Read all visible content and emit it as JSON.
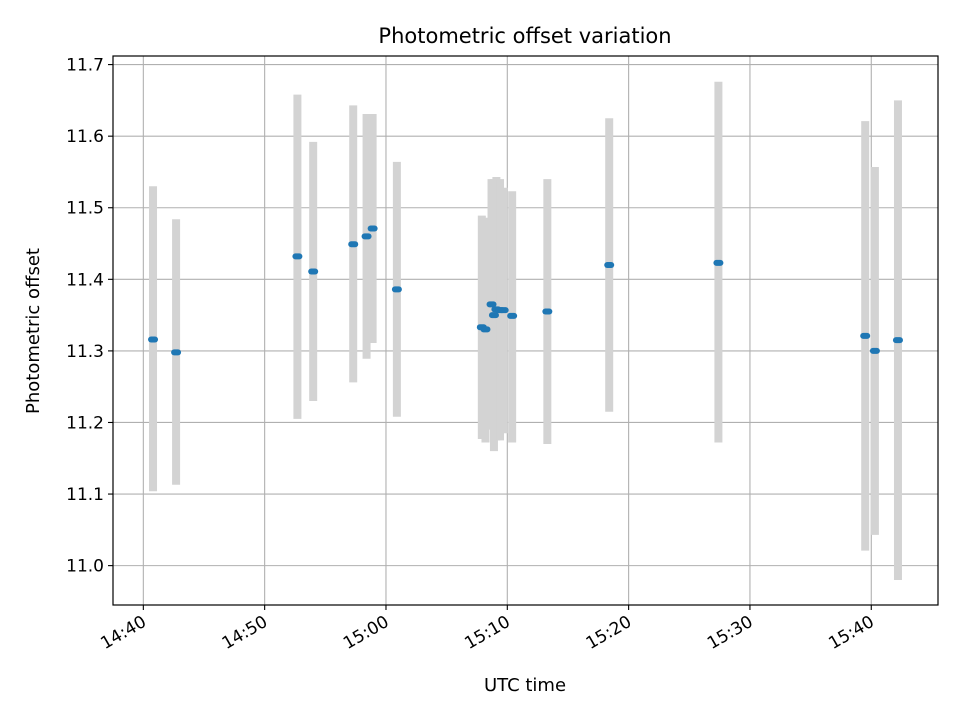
{
  "chart_data": {
    "type": "scatter",
    "title": "Photometric offset variation",
    "xlabel": "UTC time",
    "ylabel": "Photometric offset",
    "x_ticks": [
      "14:40",
      "14:50",
      "15:00",
      "15:10",
      "15:20",
      "15:30",
      "15:40"
    ],
    "y_ticks": [
      "11.0",
      "11.1",
      "11.2",
      "11.3",
      "11.4",
      "11.5",
      "11.6",
      "11.7"
    ],
    "xlim": [
      "14:37.5",
      "15:45.5"
    ],
    "ylim": [
      10.945,
      11.712
    ],
    "grid": true,
    "marker_color": "#1f77b4",
    "errorbar_color": "#d3d3d3",
    "points": [
      {
        "x": "14:40.8",
        "y": 11.316,
        "y_low": 11.104,
        "y_high": 11.53
      },
      {
        "x": "14:42.7",
        "y": 11.298,
        "y_low": 11.113,
        "y_high": 11.484
      },
      {
        "x": "14:52.7",
        "y": 11.432,
        "y_low": 11.205,
        "y_high": 11.658
      },
      {
        "x": "14:54.0",
        "y": 11.411,
        "y_low": 11.23,
        "y_high": 11.592
      },
      {
        "x": "14:57.3",
        "y": 11.449,
        "y_low": 11.256,
        "y_high": 11.643
      },
      {
        "x": "14:58.4",
        "y": 11.46,
        "y_low": 11.289,
        "y_high": 11.631
      },
      {
        "x": "14:58.9",
        "y": 11.471,
        "y_low": 11.311,
        "y_high": 11.631
      },
      {
        "x": "15:00.9",
        "y": 11.386,
        "y_low": 11.208,
        "y_high": 11.564
      },
      {
        "x": "15:07.9",
        "y": 11.333,
        "y_low": 11.177,
        "y_high": 11.489
      },
      {
        "x": "15:08.2",
        "y": 11.33,
        "y_low": 11.172,
        "y_high": 11.486
      },
      {
        "x": "15:08.7",
        "y": 11.365,
        "y_low": 11.19,
        "y_high": 11.54
      },
      {
        "x": "15:08.9",
        "y": 11.35,
        "y_low": 11.16,
        "y_high": 11.54
      },
      {
        "x": "15:09.1",
        "y": 11.358,
        "y_low": 11.175,
        "y_high": 11.543
      },
      {
        "x": "15:09.4",
        "y": 11.357,
        "y_low": 11.175,
        "y_high": 11.54
      },
      {
        "x": "15:09.7",
        "y": 11.357,
        "y_low": 11.185,
        "y_high": 11.528
      },
      {
        "x": "15:10.4",
        "y": 11.349,
        "y_low": 11.172,
        "y_high": 11.523
      },
      {
        "x": "15:13.3",
        "y": 11.355,
        "y_low": 11.17,
        "y_high": 11.54
      },
      {
        "x": "15:18.4",
        "y": 11.42,
        "y_low": 11.215,
        "y_high": 11.625
      },
      {
        "x": "15:27.4",
        "y": 11.423,
        "y_low": 11.172,
        "y_high": 11.676
      },
      {
        "x": "15:39.5",
        "y": 11.321,
        "y_low": 11.021,
        "y_high": 11.621
      },
      {
        "x": "15:40.3",
        "y": 11.3,
        "y_low": 11.043,
        "y_high": 11.557
      },
      {
        "x": "15:42.2",
        "y": 11.315,
        "y_low": 10.98,
        "y_high": 11.65
      }
    ]
  }
}
